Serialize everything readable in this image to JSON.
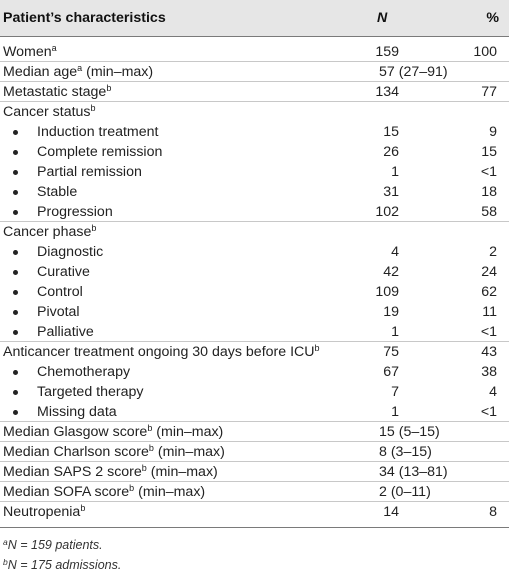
{
  "table": {
    "header": {
      "label": "Patient’s characteristics",
      "n": "N",
      "pct": "%"
    },
    "rows": [
      {
        "type": "main",
        "label": "Women",
        "sup": "a",
        "n": "159",
        "pct": "100"
      },
      {
        "type": "main",
        "label": "Median age",
        "sup": "a",
        "suffix": " (min–max)",
        "n": "",
        "span": "57 (27–91)",
        "pct": ""
      },
      {
        "type": "main",
        "label": "Metastatic stage",
        "sup": "b",
        "n": "134",
        "pct": "77"
      },
      {
        "type": "group",
        "label": "Cancer status",
        "sup": "b",
        "n": "",
        "pct": ""
      },
      {
        "type": "bullet",
        "label": "Induction treatment",
        "n": "15",
        "pct": "9"
      },
      {
        "type": "bullet",
        "label": "Complete remission",
        "n": "26",
        "pct": "15"
      },
      {
        "type": "bullet",
        "label": "Partial remission",
        "n": "1",
        "pct": "<1"
      },
      {
        "type": "bullet",
        "label": "Stable",
        "n": "31",
        "pct": "18"
      },
      {
        "type": "bullet",
        "label": "Progression",
        "n": "102",
        "pct": "58"
      },
      {
        "type": "group",
        "label": "Cancer phase",
        "sup": "b",
        "n": "",
        "pct": ""
      },
      {
        "type": "bullet",
        "label": "Diagnostic",
        "n": "4",
        "pct": "2"
      },
      {
        "type": "bullet",
        "label": "Curative",
        "n": "42",
        "pct": "24"
      },
      {
        "type": "bullet",
        "label": "Control",
        "n": "109",
        "pct": "62"
      },
      {
        "type": "bullet",
        "label": "Pivotal",
        "n": "19",
        "pct": "11"
      },
      {
        "type": "bullet",
        "label": "Palliative",
        "n": "1",
        "pct": "<1"
      },
      {
        "type": "main",
        "label": "Anticancer treatment ongoing 30 days before ICU",
        "sup": "b",
        "n": "75",
        "pct": "43"
      },
      {
        "type": "bullet",
        "label": "Chemotherapy",
        "n": "67",
        "pct": "38"
      },
      {
        "type": "bullet",
        "label": "Targeted therapy",
        "n": "7",
        "pct": "4"
      },
      {
        "type": "bullet",
        "label": "Missing data",
        "n": "1",
        "pct": "<1"
      },
      {
        "type": "main",
        "label": "Median Glasgow score",
        "sup": "b",
        "suffix": " (min–max)",
        "n": "",
        "span": "15 (5–15)",
        "pct": ""
      },
      {
        "type": "main",
        "label": "Median Charlson score",
        "sup": "b",
        "suffix": " (min–max)",
        "n": "",
        "span": "8 (3–15)",
        "pct": ""
      },
      {
        "type": "main",
        "label": "Median SAPS 2 score",
        "sup": "b",
        "suffix": " (min–max)",
        "n": "",
        "span": "34 (13–81)",
        "pct": ""
      },
      {
        "type": "main",
        "label": "Median SOFA score",
        "sup": "b",
        "suffix": " (min–max)",
        "n": "",
        "span": "2 (0–11)",
        "pct": ""
      },
      {
        "type": "main",
        "label": "Neutropenia",
        "sup": "b",
        "n": "14",
        "pct": "8"
      }
    ],
    "footnotes": [
      {
        "sup": "a",
        "text": "N = 159 patients."
      },
      {
        "sup": "b",
        "text": "N = 175 admissions."
      }
    ]
  }
}
